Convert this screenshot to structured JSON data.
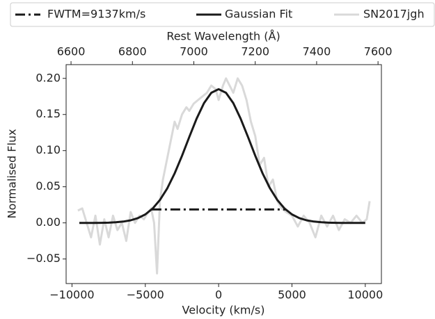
{
  "chart_data": {
    "type": "line",
    "xlabel": "Velocity (km/s)",
    "ylabel": "Normalised Flux",
    "x2label": "Rest Wavelength (Å)",
    "xlim": [
      -10400,
      11100
    ],
    "ylim": [
      -0.084,
      0.219
    ],
    "x2lim": [
      6584,
      7611
    ],
    "xticks": [
      {
        "value": -10000,
        "label": "−10000"
      },
      {
        "value": -5000,
        "label": "−5000"
      },
      0,
      5000,
      10000
    ],
    "yticks": [
      {
        "value": -0.05,
        "label": "−0.05"
      },
      {
        "value": 0,
        "label": "0.00"
      },
      {
        "value": 0.05,
        "label": "0.05"
      },
      {
        "value": 0.1,
        "label": "0.10"
      },
      {
        "value": 0.15,
        "label": "0.15"
      },
      {
        "value": 0.2,
        "label": "0.20"
      }
    ],
    "x2ticks": [
      6600,
      6800,
      7000,
      7200,
      7400,
      7600
    ],
    "legend": "top",
    "series": [
      {
        "name": "FWTM=9137km/s",
        "color": "#1a1a1a",
        "linestyle": "dashdot",
        "x": [
          -4568.5,
          4568.5
        ],
        "values": [
          0.0185,
          0.0185
        ]
      },
      {
        "name": "Gaussian Fit",
        "color": "#1a1a1a",
        "linestyle": "solid",
        "x": [
          -9500,
          -9000,
          -8500,
          -8000,
          -7500,
          -7000,
          -6500,
          -6000,
          -5500,
          -5000,
          -4500,
          -4000,
          -3500,
          -3000,
          -2500,
          -2000,
          -1500,
          -1000,
          -500,
          0,
          500,
          1000,
          1500,
          2000,
          2500,
          3000,
          3500,
          4000,
          4500,
          5000,
          5500,
          6000,
          6500,
          7000,
          7500,
          8000,
          8500,
          9000,
          9500,
          10000
        ],
        "values": [
          0,
          0,
          0,
          0.0001,
          0.0003,
          0.0008,
          0.0018,
          0.0035,
          0.0066,
          0.0117,
          0.0198,
          0.0317,
          0.0479,
          0.0685,
          0.0928,
          0.119,
          0.1443,
          0.1657,
          0.18,
          0.185,
          0.18,
          0.1657,
          0.1443,
          0.119,
          0.0928,
          0.0685,
          0.0479,
          0.0317,
          0.0198,
          0.0117,
          0.0066,
          0.0035,
          0.0018,
          0.0008,
          0.0003,
          0.0001,
          0,
          0,
          0,
          0
        ]
      },
      {
        "name": "SN2017jgh",
        "color": "#d9d9d9",
        "linestyle": "solid",
        "x": [
          -9600,
          -9300,
          -9000,
          -8700,
          -8400,
          -8100,
          -7800,
          -7500,
          -7200,
          -6900,
          -6600,
          -6300,
          -6000,
          -5700,
          -5400,
          -5100,
          -4800,
          -4600,
          -4400,
          -4200,
          -4000,
          -3800,
          -3600,
          -3400,
          -3200,
          -3000,
          -2800,
          -2500,
          -2200,
          -2000,
          -1700,
          -1400,
          -1100,
          -800,
          -500,
          -200,
          0,
          300,
          500,
          1000,
          1300,
          1600,
          1900,
          2200,
          2500,
          2800,
          3100,
          3400,
          3700,
          4000,
          4300,
          4600,
          5000,
          5400,
          5800,
          6200,
          6600,
          7000,
          7400,
          7800,
          8200,
          8600,
          9000,
          9400,
          9800,
          10100,
          10300
        ],
        "values": [
          0.017,
          0.02,
          0,
          -0.02,
          0.01,
          -0.03,
          0.005,
          -0.02,
          0.01,
          -0.01,
          0,
          -0.025,
          0.015,
          0,
          0.01,
          0.005,
          0.015,
          0.02,
          0,
          -0.07,
          0.03,
          0.06,
          0.08,
          0.1,
          0.12,
          0.14,
          0.13,
          0.15,
          0.16,
          0.155,
          0.165,
          0.17,
          0.175,
          0.18,
          0.19,
          0.185,
          0.17,
          0.19,
          0.2,
          0.18,
          0.2,
          0.19,
          0.17,
          0.14,
          0.12,
          0.08,
          0.09,
          0.05,
          0.06,
          0.03,
          0.02,
          0.015,
          0.01,
          -0.005,
          0.01,
          0,
          -0.02,
          0.01,
          -0.005,
          0.01,
          -0.01,
          0.005,
          0,
          0.01,
          0,
          0.005,
          0.03
        ]
      }
    ]
  }
}
